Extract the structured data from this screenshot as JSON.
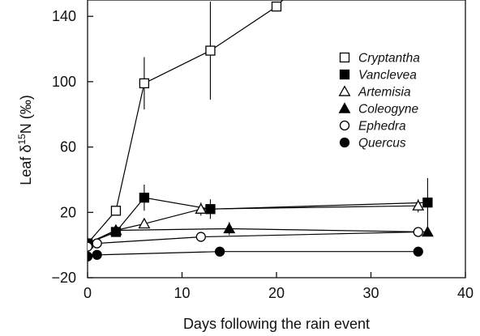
{
  "chart_data": {
    "type": "line",
    "title": "",
    "xlabel": "Days following the rain event",
    "ylabel_parts": {
      "pre": "Leaf δ",
      "sup": "15",
      "post": "N (‰)"
    },
    "xlim": [
      0,
      40
    ],
    "ylim": [
      -20,
      150
    ],
    "x_ticks": [
      0,
      10,
      20,
      30,
      40
    ],
    "y_ticks": [
      -20,
      20,
      60,
      100,
      140
    ],
    "x_tick_labels": [
      "0",
      "10",
      "20",
      "30",
      "40"
    ],
    "y_tick_labels": [
      "−20",
      "20",
      "60",
      "100",
      "140"
    ],
    "legend_position": "right",
    "series": [
      {
        "name": "Cryptantha",
        "marker": "square",
        "filled": false,
        "points": [
          {
            "x": 0,
            "y": 1
          },
          {
            "x": 3,
            "y": 21
          },
          {
            "x": 6,
            "y": 99,
            "err": 16
          },
          {
            "x": 13,
            "y": 119,
            "err": 30
          },
          {
            "x": 20,
            "y": 146
          },
          {
            "x": 22,
            "y": 158
          }
        ]
      },
      {
        "name": "Vanclevea",
        "marker": "square",
        "filled": true,
        "points": [
          {
            "x": 0,
            "y": 1
          },
          {
            "x": 3,
            "y": 8
          },
          {
            "x": 6,
            "y": 29,
            "err": 8
          },
          {
            "x": 13,
            "y": 22,
            "err": 6
          },
          {
            "x": 36,
            "y": 26,
            "err": 15
          }
        ]
      },
      {
        "name": "Artemisia",
        "marker": "triangle",
        "filled": false,
        "points": [
          {
            "x": 0,
            "y": 1
          },
          {
            "x": 3,
            "y": 9
          },
          {
            "x": 6,
            "y": 13
          },
          {
            "x": 12,
            "y": 22,
            "err": 4
          },
          {
            "x": 35,
            "y": 24,
            "err": 4
          }
        ]
      },
      {
        "name": "Coleogyne",
        "marker": "triangle",
        "filled": true,
        "points": [
          {
            "x": 0,
            "y": 1
          },
          {
            "x": 3,
            "y": 9
          },
          {
            "x": 15,
            "y": 10,
            "err": 4
          },
          {
            "x": 36,
            "y": 8
          }
        ]
      },
      {
        "name": "Ephedra",
        "marker": "circle",
        "filled": false,
        "points": [
          {
            "x": 0,
            "y": -1
          },
          {
            "x": 1,
            "y": 1
          },
          {
            "x": 12,
            "y": 5
          },
          {
            "x": 35,
            "y": 8
          }
        ]
      },
      {
        "name": "Quercus",
        "marker": "circle",
        "filled": true,
        "points": [
          {
            "x": 0,
            "y": -7
          },
          {
            "x": 1,
            "y": -6
          },
          {
            "x": 14,
            "y": -4
          },
          {
            "x": 35,
            "y": -4
          }
        ]
      }
    ]
  }
}
